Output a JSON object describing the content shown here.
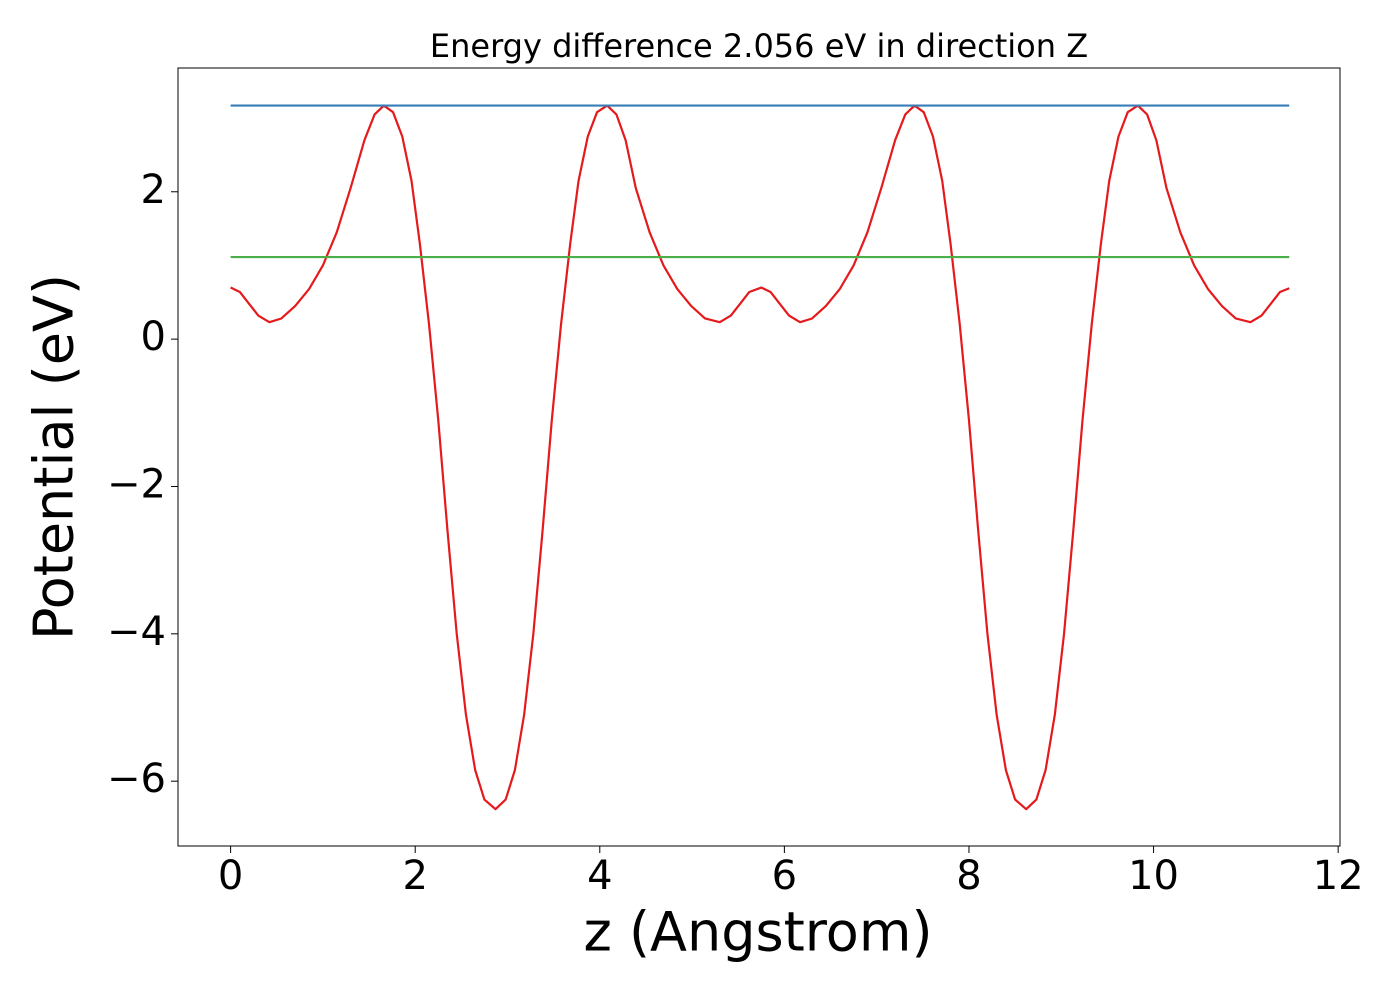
{
  "chart_data": {
    "type": "line",
    "title": "Energy difference 2.056 eV in direction Z",
    "x_label": "z (Angstrom)",
    "y_label": "Potential (eV)",
    "xlim": [
      -0.57,
      12.02
    ],
    "ylim": [
      -6.88,
      3.68
    ],
    "xticks": [
      0,
      2,
      4,
      6,
      8,
      10,
      12
    ],
    "yticks": [
      {
        "value": -6,
        "label": "−6"
      },
      {
        "value": -4,
        "label": "−4"
      },
      {
        "value": -2,
        "label": "−2"
      },
      0,
      2
    ],
    "grid": false,
    "series": [
      {
        "color": "#e41a1c",
        "x": [
          0,
          0.1,
          0.2,
          0.3,
          0.42,
          0.55,
          0.7,
          0.85,
          1.0,
          1.15,
          1.3,
          1.45,
          1.56,
          1.66,
          1.76,
          1.86,
          1.96,
          2.05,
          2.15,
          2.25,
          2.35,
          2.45,
          2.55,
          2.65,
          2.75,
          2.87,
          2.98,
          3.08,
          3.18,
          3.28,
          3.38,
          3.48,
          3.58,
          3.68,
          3.77,
          3.87,
          3.97,
          4.08,
          4.18,
          4.28,
          4.39,
          4.54,
          4.69,
          4.84,
          4.99,
          5.14,
          5.3,
          5.42,
          5.52,
          5.62,
          5.75,
          5.85,
          5.95,
          6.05,
          6.17,
          6.3,
          6.45,
          6.6,
          6.75,
          6.9,
          7.05,
          7.2,
          7.31,
          7.41,
          7.51,
          7.61,
          7.71,
          7.8,
          7.9,
          8.0,
          8.1,
          8.2,
          8.3,
          8.4,
          8.5,
          8.62,
          8.73,
          8.83,
          8.93,
          9.03,
          9.13,
          9.23,
          9.33,
          9.43,
          9.52,
          9.62,
          9.72,
          9.83,
          9.93,
          10.03,
          10.14,
          10.29,
          10.44,
          10.59,
          10.74,
          10.89,
          11.05,
          11.17,
          11.27,
          11.37,
          11.47
        ],
        "values": [
          0.7,
          0.64,
          0.48,
          0.32,
          0.23,
          0.28,
          0.45,
          0.68,
          1.0,
          1.45,
          2.05,
          2.7,
          3.05,
          3.17,
          3.08,
          2.75,
          2.15,
          1.3,
          0.2,
          -1.1,
          -2.6,
          -4.0,
          -5.1,
          -5.85,
          -6.25,
          -6.38,
          -6.25,
          -5.85,
          -5.1,
          -4.0,
          -2.6,
          -1.1,
          0.2,
          1.3,
          2.15,
          2.75,
          3.08,
          3.17,
          3.05,
          2.7,
          2.05,
          1.45,
          1.0,
          0.68,
          0.45,
          0.28,
          0.23,
          0.32,
          0.48,
          0.64,
          0.7,
          0.64,
          0.48,
          0.32,
          0.23,
          0.28,
          0.45,
          0.68,
          1.0,
          1.45,
          2.05,
          2.7,
          3.05,
          3.17,
          3.08,
          2.75,
          2.15,
          1.3,
          0.2,
          -1.1,
          -2.6,
          -4.0,
          -5.1,
          -5.85,
          -6.25,
          -6.38,
          -6.25,
          -5.85,
          -5.1,
          -4.0,
          -2.6,
          -1.1,
          0.2,
          1.3,
          2.15,
          2.75,
          3.08,
          3.17,
          3.05,
          2.7,
          2.05,
          1.45,
          1.0,
          0.68,
          0.45,
          0.28,
          0.23,
          0.32,
          0.48,
          0.64,
          0.69
        ]
      },
      {
        "color": "#377eb8",
        "x": [
          0,
          11.47
        ],
        "values": [
          3.17,
          3.17
        ]
      },
      {
        "color": "#4daf4a",
        "x": [
          0,
          11.47
        ],
        "values": [
          1.114,
          1.114
        ]
      }
    ]
  }
}
